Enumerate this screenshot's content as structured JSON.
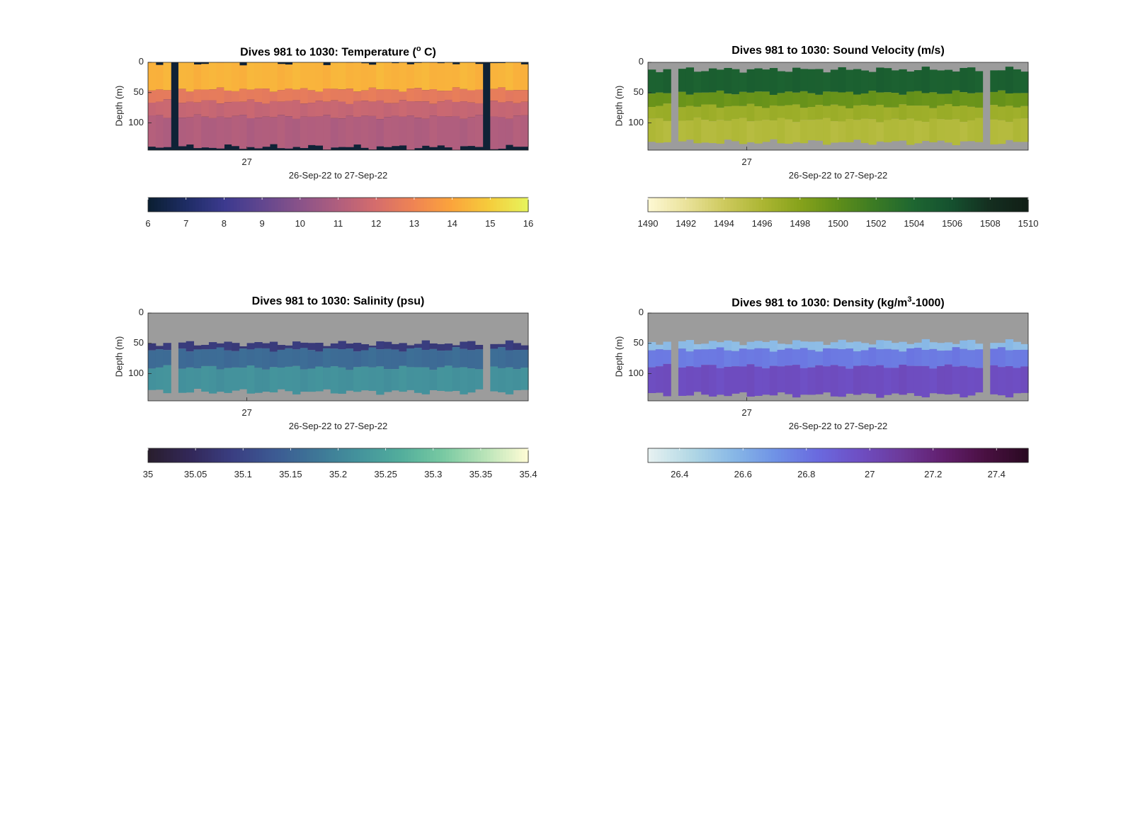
{
  "chart_data": [
    {
      "id": "temp",
      "type": "heatmap",
      "title_main": "Dives 981 to 1030: Temperature (",
      "title_sup": "o",
      "title_tail": " C)",
      "ylabel": "Depth (m)",
      "xlabel": "26-Sep-22 to 27-Sep-22",
      "yticks": [
        "0",
        "50",
        "100"
      ],
      "xtick": "27",
      "ylim": [
        145,
        0
      ],
      "colorbar_ticks": [
        "6",
        "7",
        "8",
        "9",
        "10",
        "11",
        "12",
        "13",
        "14",
        "15",
        "16"
      ],
      "clim": [
        6,
        16
      ],
      "colormap": [
        "#0b1f33",
        "#1f2d66",
        "#3c3a8f",
        "#62478f",
        "#8a5389",
        "#b05e7e",
        "#d56d6c",
        "#ef8453",
        "#fba43c",
        "#f5cc3c",
        "#e7f35b"
      ],
      "background": "#0f2236",
      "layers": [
        {
          "depth_range": [
            0,
            45
          ],
          "value": 14.4
        },
        {
          "depth_range": [
            45,
            65
          ],
          "value": 12.6
        },
        {
          "depth_range": [
            65,
            90
          ],
          "value": 11.6
        },
        {
          "depth_range": [
            90,
            140
          ],
          "value": 11.0
        }
      ],
      "gap_dives": [
        3,
        44
      ]
    },
    {
      "id": "sv",
      "type": "heatmap",
      "title_main": "Dives 981 to 1030: Sound Velocity (m/s)",
      "title_sup": "",
      "title_tail": "",
      "ylabel": "Depth (m)",
      "xlabel": "26-Sep-22 to 27-Sep-22",
      "yticks": [
        "0",
        "50",
        "100"
      ],
      "xtick": "27",
      "ylim": [
        145,
        0
      ],
      "colorbar_ticks": [
        "1490",
        "1492",
        "1494",
        "1496",
        "1498",
        "1500",
        "1502",
        "1504",
        "1506",
        "1508",
        "1510"
      ],
      "clim": [
        1490,
        1510
      ],
      "colormap": [
        "#fdf8d2",
        "#e9e199",
        "#cdc95d",
        "#acb633",
        "#86a21b",
        "#5f8e1a",
        "#3a7a24",
        "#1e6631",
        "#15512f",
        "#142f20",
        "#111f16"
      ],
      "background": "#9c9c9c",
      "layers": [
        {
          "depth_range": [
            12,
            50
          ],
          "value": 1504.6
        },
        {
          "depth_range": [
            50,
            72
          ],
          "value": 1499.5
        },
        {
          "depth_range": [
            72,
            95
          ],
          "value": 1496.8
        },
        {
          "depth_range": [
            95,
            132
          ],
          "value": 1495.6
        }
      ],
      "gap_dives": [
        3,
        44
      ]
    },
    {
      "id": "sal",
      "type": "heatmap",
      "title_main": "Dives 981 to 1030: Salinity (psu)",
      "title_sup": "",
      "title_tail": "",
      "ylabel": "Depth (m)",
      "xlabel": "26-Sep-22 to 27-Sep-22",
      "yticks": [
        "0",
        "50",
        "100"
      ],
      "xtick": "27",
      "ylim": [
        145,
        0
      ],
      "colorbar_ticks": [
        "35",
        "35.05",
        "35.1",
        "35.15",
        "35.2",
        "35.25",
        "35.3",
        "35.35",
        "35.4"
      ],
      "clim": [
        35,
        35.4
      ],
      "colormap": [
        "#291e2e",
        "#33285a",
        "#3a3f82",
        "#3c5a93",
        "#3e7797",
        "#44939c",
        "#52ae9c",
        "#78c9a2",
        "#b9e4b8",
        "#fdfbd4"
      ],
      "background": "#9c9c9c",
      "layers": [
        {
          "depth_range": [
            50,
            60
          ],
          "value": 35.08
        },
        {
          "depth_range": [
            60,
            90
          ],
          "value": 35.16
        },
        {
          "depth_range": [
            90,
            130
          ],
          "value": 35.22
        }
      ],
      "gap_dives": [
        3,
        44
      ]
    },
    {
      "id": "dens",
      "type": "heatmap",
      "title_main": "Dives 981 to 1030: Density (kg/m",
      "title_sup": "3",
      "title_tail": "-1000)",
      "ylabel": "Depth (m)",
      "xlabel": "26-Sep-22 to 27-Sep-22",
      "yticks": [
        "0",
        "50",
        "100"
      ],
      "xtick": "27",
      "ylim": [
        145,
        0
      ],
      "colorbar_ticks": [
        "26.4",
        "26.6",
        "26.8",
        "27",
        "27.2",
        "27.4"
      ],
      "clim": [
        26.3,
        27.5
      ],
      "colormap": [
        "#e6f1f1",
        "#b2d8e5",
        "#88b8e6",
        "#6f92e6",
        "#6a6adf",
        "#6e4fc4",
        "#6d3a9b",
        "#621f6e",
        "#4a1042",
        "#2a0a22"
      ],
      "background": "#9c9c9c",
      "layers": [
        {
          "depth_range": [
            48,
            60
          ],
          "value": 26.55
        },
        {
          "depth_range": [
            60,
            88
          ],
          "value": 26.78
        },
        {
          "depth_range": [
            88,
            135
          ],
          "value": 26.98
        }
      ],
      "gap_dives": [
        3,
        44
      ]
    }
  ]
}
